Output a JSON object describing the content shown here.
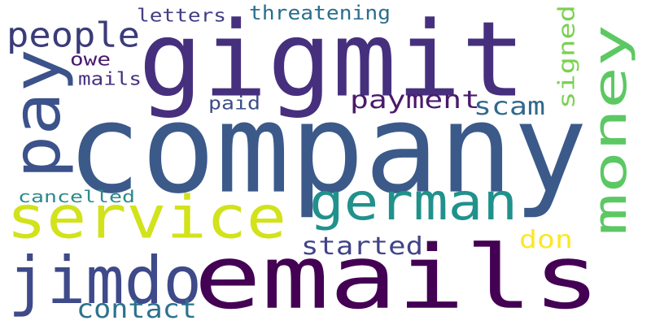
{
  "words": [
    {
      "text": "company",
      "color": "#3b5a8a"
    },
    {
      "text": "emails",
      "color": "#440154"
    },
    {
      "text": "gigmit",
      "color": "#46307e"
    },
    {
      "text": "service",
      "color": "#d2e21b"
    },
    {
      "text": "money",
      "color": "#5cc863"
    },
    {
      "text": "german",
      "color": "#21918c"
    },
    {
      "text": "jimdo",
      "color": "#3e4a89"
    },
    {
      "text": "pay",
      "color": "#3b528b"
    },
    {
      "text": "people",
      "color": "#3b3b7a"
    },
    {
      "text": "payment",
      "color": "#4a1a6b"
    },
    {
      "text": "started",
      "color": "#414487"
    },
    {
      "text": "contact",
      "color": "#2c728e"
    },
    {
      "text": "scam",
      "color": "#31688e"
    },
    {
      "text": "signed",
      "color": "#7ad151"
    },
    {
      "text": "threatening",
      "color": "#2a6f8e"
    },
    {
      "text": "letters",
      "color": "#433e85"
    },
    {
      "text": "cancelled",
      "color": "#2d8a8c"
    },
    {
      "text": "don",
      "color": "#fde725"
    },
    {
      "text": "mails",
      "color": "#46327e"
    },
    {
      "text": "owe",
      "color": "#48196b"
    },
    {
      "text": "paid",
      "color": "#3d4e8a"
    }
  ]
}
